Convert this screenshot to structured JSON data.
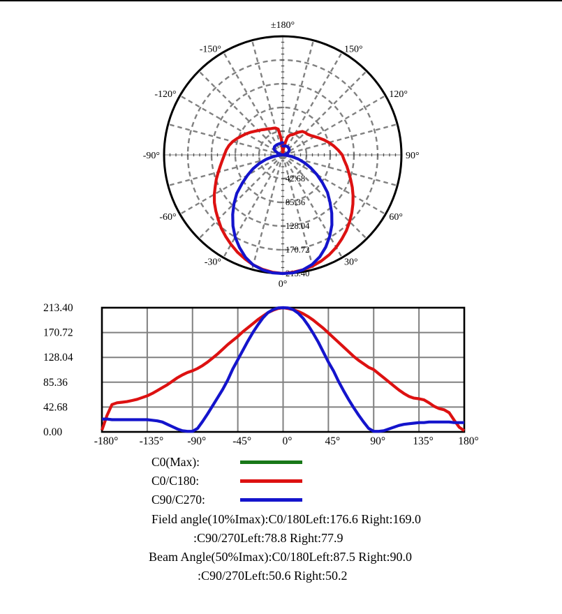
{
  "colors": {
    "curve_red": "#dd1111",
    "curve_blue": "#1414cc",
    "curve_green": "#187818",
    "grid": "#808080",
    "axis_ticks": "#4d4d4d",
    "frame": "#000000",
    "background": "#ffffff"
  },
  "chart_data": {
    "type": "line",
    "intensity_max": 213.4,
    "angles_deg": [
      -180,
      -175,
      -170,
      -165,
      -160,
      -155,
      -150,
      -145,
      -140,
      -135,
      -130,
      -125,
      -120,
      -115,
      -110,
      -105,
      -100,
      -95,
      -90,
      -85,
      -80,
      -75,
      -70,
      -65,
      -60,
      -55,
      -50,
      -45,
      -40,
      -35,
      -30,
      -25,
      -20,
      -15,
      -10,
      -5,
      0,
      5,
      10,
      15,
      20,
      25,
      30,
      35,
      40,
      45,
      50,
      55,
      60,
      65,
      70,
      75,
      80,
      85,
      90,
      95,
      100,
      105,
      110,
      115,
      120,
      125,
      130,
      135,
      140,
      145,
      150,
      155,
      160,
      165,
      170,
      175,
      180
    ],
    "series": [
      {
        "name": "C0(Max)",
        "color": "#187818",
        "drawn": false,
        "values": []
      },
      {
        "name": "C0/C180",
        "color": "#dd1111",
        "drawn": true,
        "values": [
          3,
          28,
          47,
          50,
          51,
          52,
          54,
          56,
          59,
          62,
          66,
          71,
          76,
          81,
          87,
          93,
          98,
          102,
          105,
          109,
          114,
          120,
          127,
          134,
          142,
          150,
          157,
          164,
          172,
          179,
          186,
          193,
          199,
          205,
          209,
          212,
          213.4,
          212,
          210,
          207,
          203,
          198,
          192,
          185,
          178,
          170,
          162,
          154,
          146,
          138,
          130,
          123,
          117,
          111,
          107,
          100,
          93,
          86,
          79,
          72,
          66,
          61,
          58,
          57,
          55,
          50,
          44,
          40,
          38,
          33,
          20,
          8,
          2
        ]
      },
      {
        "name": "C90/C270",
        "color": "#1414cc",
        "drawn": true,
        "values": [
          22,
          22,
          21,
          21,
          21,
          21,
          21,
          21,
          21,
          21,
          20,
          19,
          17,
          13,
          9,
          5,
          2,
          1,
          1,
          6,
          18,
          31,
          45,
          59,
          73,
          89,
          108,
          124,
          140,
          156,
          171,
          184,
          196,
          205,
          210,
          213,
          213.4,
          213,
          210,
          204,
          195,
          183,
          169,
          154,
          137,
          120,
          105,
          87,
          71,
          56,
          42,
          29,
          17,
          6,
          1,
          1,
          2,
          5,
          8,
          11,
          13,
          14,
          15,
          16,
          16,
          17,
          17,
          17,
          17,
          17,
          16,
          16,
          16
        ]
      }
    ],
    "polar": {
      "ray_step_deg": 15,
      "radial_tick_values": [
        42.68,
        85.36,
        128.04,
        170.72,
        213.4
      ],
      "radial_tick_labels": [
        "42.68",
        "85.36",
        "128.04",
        "170.72",
        "213.40"
      ],
      "angle_labels": [
        {
          "deg": 180,
          "label": "±180°"
        },
        {
          "deg": -150,
          "label": "-150°"
        },
        {
          "deg": 150,
          "label": "150°"
        },
        {
          "deg": -120,
          "label": "-120°"
        },
        {
          "deg": 120,
          "label": "120°"
        },
        {
          "deg": -90,
          "label": "-90°"
        },
        {
          "deg": 90,
          "label": "90°"
        },
        {
          "deg": -60,
          "label": "-60°"
        },
        {
          "deg": 60,
          "label": "60°"
        },
        {
          "deg": -30,
          "label": "-30°"
        },
        {
          "deg": 30,
          "label": "30°"
        },
        {
          "deg": 0,
          "label": "0°"
        }
      ]
    },
    "cartesian": {
      "xlim": [
        -180,
        180
      ],
      "ylim": [
        0,
        213.4
      ],
      "x_tick_values": [
        -180,
        -135,
        -90,
        -45,
        0,
        45,
        90,
        135,
        180
      ],
      "x_tick_labels": [
        "-180°",
        "-135°",
        "-90°",
        "-45°",
        "0°",
        "45°",
        "90°",
        "135°",
        "180°"
      ],
      "y_tick_values": [
        213.4,
        170.72,
        128.04,
        85.36,
        42.68,
        0
      ],
      "y_tick_labels": [
        "213.40",
        "170.72",
        "128.04",
        "85.36",
        "42.68",
        "0.00"
      ]
    }
  },
  "legend": {
    "items": [
      {
        "label": "C0(Max):",
        "color": "#187818"
      },
      {
        "label": "C0/C180:",
        "color": "#dd1111"
      },
      {
        "label": "C90/C270:",
        "color": "#1414cc"
      }
    ]
  },
  "annotations": {
    "lines": [
      {
        "text": "Field angle(10%Imax):C0/180Left:176.6 Right:169.0"
      },
      {
        "text": ":C90/270Left:78.8 Right:77.9"
      },
      {
        "text": "Beam Angle(50%Imax):C0/180Left:87.5 Right:90.0"
      },
      {
        "text": ":C90/270Left:50.6 Right:50.2"
      }
    ]
  }
}
